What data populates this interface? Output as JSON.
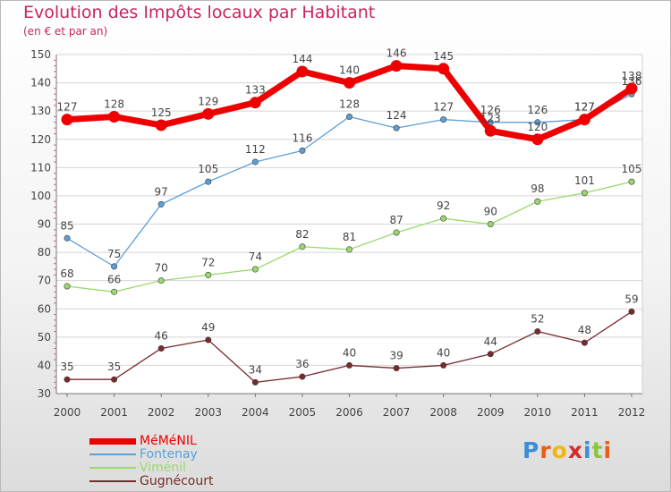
{
  "header": {
    "title": "Evolution des Impôts locaux par Habitant",
    "subtitle": "(en € et par an)"
  },
  "logo": {
    "text": "Proxiti",
    "letter_colors": [
      "#3a8fd6",
      "#e85e17",
      "#f2b40f",
      "#d42a2a",
      "#3a8fd6",
      "#8cc63f",
      "#e85e17"
    ]
  },
  "chart_data": {
    "type": "line",
    "title": "Evolution des Impôts locaux par Habitant",
    "subtitle": "(en € et par an)",
    "xlabel": "",
    "ylabel": "",
    "x": [
      "2000",
      "2001",
      "2002",
      "2003",
      "2004",
      "2005",
      "2006",
      "2007",
      "2008",
      "2009",
      "2010",
      "2011",
      "2012"
    ],
    "ylim": [
      30,
      150
    ],
    "yticks": [
      30,
      40,
      50,
      60,
      70,
      80,
      90,
      100,
      110,
      120,
      130,
      140,
      150
    ],
    "grid": "horizontal",
    "legend_position": "bottom-left",
    "series": [
      {
        "name": "MéMéNIL",
        "color": "#ee0000",
        "emphasis": true,
        "values": [
          127,
          128,
          125,
          129,
          133,
          144,
          140,
          146,
          145,
          123,
          120,
          127,
          138
        ]
      },
      {
        "name": "Fontenay",
        "color": "#5b9fd7",
        "values": [
          85,
          75,
          97,
          105,
          112,
          116,
          128,
          124,
          127,
          126,
          126,
          127,
          136
        ]
      },
      {
        "name": "Viménil",
        "color": "#99d96d",
        "values": [
          68,
          66,
          70,
          72,
          74,
          82,
          81,
          87,
          92,
          90,
          98,
          101,
          105
        ]
      },
      {
        "name": "Gugnécourt",
        "color": "#7a2a2a",
        "values": [
          35,
          35,
          46,
          49,
          34,
          36,
          40,
          39,
          40,
          44,
          52,
          48,
          59
        ]
      }
    ]
  }
}
